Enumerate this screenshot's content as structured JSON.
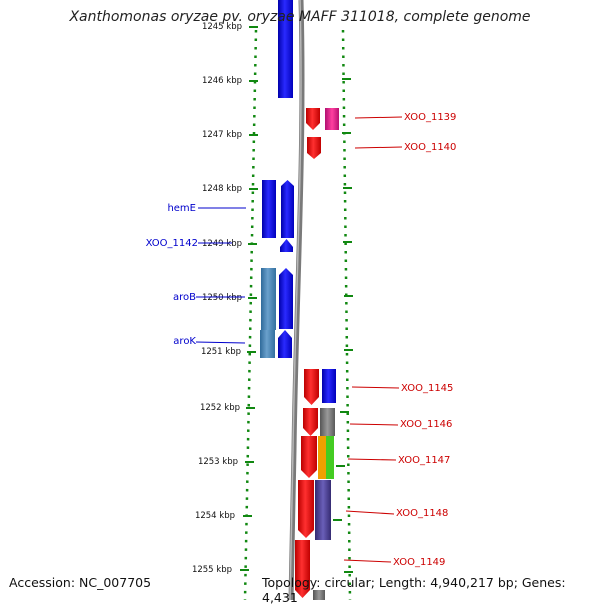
{
  "title": "Xanthomonas oryzae pv. oryzae MAFF 311018, complete genome",
  "footer": {
    "accession": "Accession: NC_007705",
    "topology": "Topology: circular; Length: 4,940,217 bp; Genes: 4,431"
  },
  "ticks": [
    {
      "label": "1245 kbp"
    },
    {
      "label": "1246 kbp"
    },
    {
      "label": "1247 kbp"
    },
    {
      "label": "1248 kbp"
    },
    {
      "label": "1249 kbp"
    },
    {
      "label": "1250 kbp"
    },
    {
      "label": "1251 kbp"
    },
    {
      "label": "1252 kbp"
    },
    {
      "label": "1253 kbp"
    },
    {
      "label": "1254 kbp"
    },
    {
      "label": "1255 kbp"
    }
  ],
  "left_labels": [
    "hemE",
    "XOO_1142",
    "aroB",
    "aroK"
  ],
  "right_labels": [
    "XOO_1139",
    "XOO_1140",
    "XOO_1145",
    "XOO_1146",
    "XOO_1147",
    "XOO_1148",
    "XOO_1149"
  ],
  "colors": {
    "blue": "#0000ee",
    "steel": "#4682b4",
    "red": "#ee0000",
    "magenta": "#e0208a",
    "gray": "#707070",
    "orange": "#f0a000",
    "green": "#44cc22",
    "purple": "#4a3f90",
    "ruler_dot": "#118811",
    "left_label": "#0000cc",
    "right_label": "#cc0000"
  }
}
